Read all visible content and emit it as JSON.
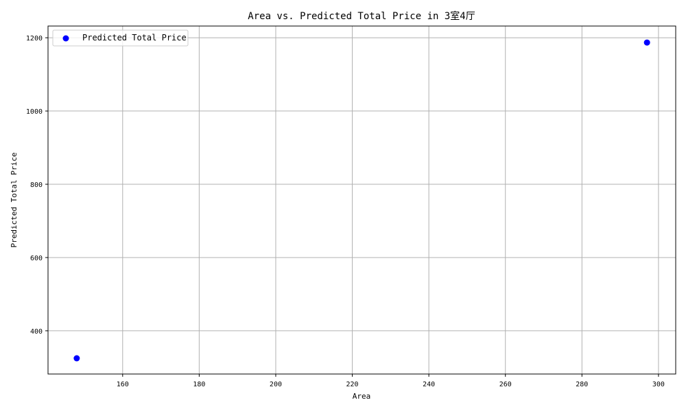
{
  "chart_data": {
    "type": "scatter",
    "title": "Area vs. Predicted Total Price in 3室4厅",
    "xlabel": "Area",
    "ylabel": "Predicted Total Price",
    "xlim": [
      140.5,
      304.5
    ],
    "ylim": [
      282,
      1232
    ],
    "xticks": [
      160,
      180,
      200,
      220,
      240,
      260,
      280,
      300
    ],
    "yticks": [
      400,
      600,
      800,
      1000,
      1200
    ],
    "grid": true,
    "legend_position": "top-left",
    "series": [
      {
        "name": "Predicted Total Price",
        "color": "#0000ff",
        "marker": "circle",
        "points": [
          {
            "x": 148,
            "y": 325
          },
          {
            "x": 297,
            "y": 1187
          }
        ]
      }
    ]
  }
}
